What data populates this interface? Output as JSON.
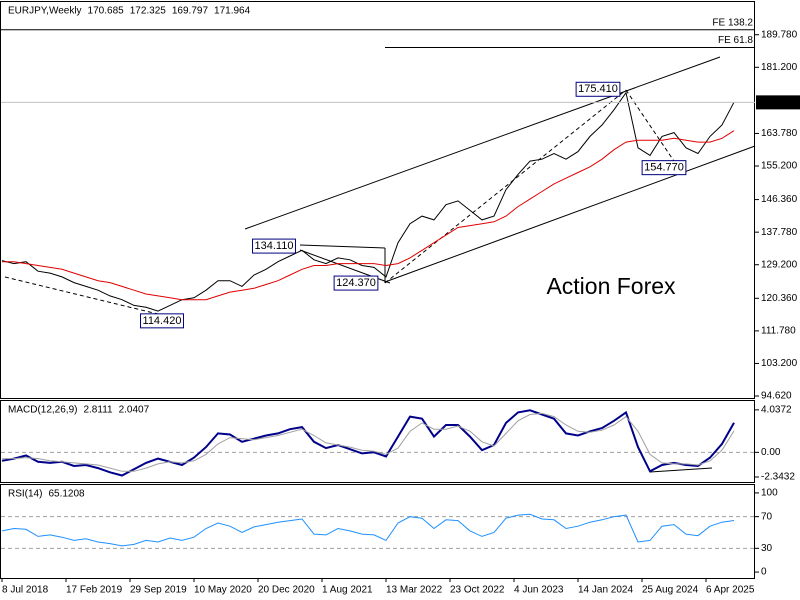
{
  "chart_data": [
    {
      "type": "line",
      "title": "EURJPY,Weekly",
      "ohlc": [
        170.685,
        172.325,
        169.797,
        171.964
      ],
      "x": [
        0,
        6,
        12,
        18,
        24,
        30,
        36,
        42,
        48,
        54,
        60,
        66,
        72,
        78,
        84,
        90,
        96,
        102,
        108,
        114,
        120,
        126,
        132,
        138,
        144,
        150,
        156,
        162,
        168,
        174,
        180,
        186,
        192,
        198,
        204,
        210,
        216,
        222,
        228,
        234,
        240,
        246,
        252,
        258,
        264,
        270,
        276,
        282,
        288,
        294,
        300,
        306,
        312,
        318,
        324,
        330,
        336,
        342,
        348,
        354,
        360,
        366
      ],
      "xlim": [
        -1,
        376.5
      ],
      "ylim": [
        94.1,
        198.4
      ],
      "yticks": [
        {
          "value": 189.78,
          "label": "189.780"
        },
        {
          "value": 181.2,
          "label": "181.200"
        },
        {
          "value": 163.78,
          "label": "163.780"
        },
        {
          "value": 155.2,
          "label": "155.200"
        },
        {
          "value": 146.36,
          "label": "146.360"
        },
        {
          "value": 137.78,
          "label": "137.780"
        },
        {
          "value": 129.2,
          "label": "129.200"
        },
        {
          "value": 120.36,
          "label": "120.360"
        },
        {
          "value": 111.78,
          "label": "111.780"
        },
        {
          "value": 103.2,
          "label": "103.200"
        },
        {
          "value": 94.62,
          "label": "94.620"
        }
      ],
      "last_price": {
        "value": 171.964,
        "label": "171.964"
      },
      "series": [
        {
          "color": "#000000",
          "values": [
            130.3,
            129.5,
            130,
            127.5,
            127,
            126,
            124.5,
            123.5,
            122.5,
            121,
            120,
            118.5,
            118,
            117,
            118.5,
            120,
            120.5,
            122.5,
            125,
            125,
            123.5,
            126.5,
            128,
            130,
            131.5,
            133,
            130.5,
            129.5,
            131,
            130.5,
            129,
            128.5,
            126,
            135,
            140,
            142,
            141,
            145,
            146,
            143.5,
            141,
            142,
            149,
            153,
            156.5,
            157,
            158.5,
            157,
            159,
            163,
            166,
            170,
            174.5,
            160,
            158,
            163,
            164,
            160,
            158.5,
            163,
            166,
            172
          ]
        },
        {
          "color": "#e00000",
          "values": [
            130,
            130,
            129.5,
            129,
            128.5,
            128,
            127,
            126,
            125,
            124.5,
            123.5,
            122.5,
            121.5,
            121,
            120.5,
            120,
            120,
            120,
            121,
            122,
            122.5,
            123,
            124,
            125,
            126.5,
            128,
            129,
            129,
            129.5,
            129.5,
            129.5,
            129.5,
            129,
            129.5,
            131,
            133,
            135,
            137,
            139,
            139.5,
            140,
            140.5,
            142,
            144.5,
            146.5,
            148.5,
            150.5,
            152,
            153.5,
            155,
            157,
            159.5,
            161.5,
            162,
            162,
            162,
            162.5,
            162,
            161.5,
            161.5,
            162.5,
            164.5
          ]
        }
      ],
      "annotations": [
        {
          "value": 175.41,
          "label": "175.410",
          "x": 312
        },
        {
          "value": 154.77,
          "label": "154.770",
          "x": 329
        },
        {
          "value": 134.11,
          "label": "134.110",
          "x": 149
        },
        {
          "value": 124.37,
          "label": "124.370",
          "x": 192
        },
        {
          "value": 114.42,
          "label": "114.420",
          "x": 80
        }
      ],
      "fe_levels": [
        {
          "label": "FE 138.2",
          "price": 191.1,
          "from": -1
        },
        {
          "label": "FE 61.8",
          "price": 186.4,
          "from": 191.5
        }
      ],
      "watermark": "Action Forex"
    },
    {
      "type": "line",
      "title": "MACD(12,26,9)",
      "ylim": [
        -2.82,
        4.88
      ],
      "yticks": [
        4.0372,
        {
          "value": 0,
          "label": "0.00"
        },
        -2.3432
      ],
      "levels": [
        0
      ],
      "series": [
        {
          "color": "#00008b",
          "values": [
            -0.8,
            -0.6,
            -0.3,
            -0.9,
            -1.0,
            -0.9,
            -1.3,
            -1.2,
            -1.5,
            -1.9,
            -2.2,
            -1.6,
            -1.0,
            -0.6,
            -0.9,
            -1.2,
            -0.5,
            0.5,
            1.8,
            1.7,
            1.0,
            1.3,
            1.6,
            1.8,
            2.2,
            2.4,
            1.0,
            0.4,
            0.7,
            0.3,
            -0.1,
            0.0,
            -0.4,
            1.5,
            3.4,
            3.2,
            1.5,
            2.6,
            2.6,
            1.5,
            0.2,
            0.7,
            2.8,
            3.8,
            4.0,
            3.6,
            3.2,
            1.8,
            1.6,
            2.0,
            2.3,
            3.0,
            3.8,
            0.5,
            -1.8,
            -1.2,
            -1.0,
            -1.2,
            -1.3,
            -0.5,
            0.8,
            2.8111
          ]
        },
        {
          "color": "#a0a0a0",
          "values": [
            -0.6,
            -0.6,
            -0.5,
            -0.6,
            -0.8,
            -0.9,
            -1.0,
            -1.1,
            -1.2,
            -1.5,
            -1.8,
            -1.8,
            -1.5,
            -1.1,
            -0.9,
            -1.0,
            -0.8,
            -0.2,
            0.8,
            1.4,
            1.3,
            1.2,
            1.4,
            1.6,
            1.9,
            2.2,
            1.6,
            0.9,
            0.7,
            0.5,
            0.2,
            0.1,
            -0.2,
            0.4,
            2.0,
            2.8,
            2.2,
            2.2,
            2.5,
            2.0,
            1.0,
            0.6,
            1.8,
            3.0,
            3.6,
            3.7,
            3.4,
            2.6,
            2.0,
            1.9,
            2.1,
            2.6,
            3.4,
            2.0,
            -0.2,
            -1.0,
            -1.1,
            -1.1,
            -1.2,
            -0.8,
            0.2,
            2.0407
          ]
        }
      ]
    },
    {
      "type": "line",
      "title": "RSI(14)",
      "ylim": [
        -7.5,
        110
      ],
      "yticks": [
        100,
        70,
        30,
        0
      ],
      "levels": [
        70,
        30
      ],
      "series": [
        {
          "color": "#1e90ff",
          "values": [
            52,
            55,
            54,
            45,
            47,
            44,
            40,
            42,
            38,
            36,
            33,
            35,
            40,
            38,
            43,
            40,
            44,
            55,
            62,
            58,
            50,
            57,
            60,
            63,
            65,
            67,
            48,
            47,
            55,
            52,
            48,
            47,
            40,
            62,
            70,
            68,
            55,
            66,
            65,
            52,
            45,
            50,
            68,
            72,
            73,
            67,
            66,
            55,
            58,
            63,
            66,
            70,
            72,
            38,
            40,
            58,
            60,
            48,
            46,
            58,
            63,
            65.1208
          ]
        }
      ],
      "xticks": [
        {
          "value": 0,
          "label": "8 Jul 2018"
        },
        {
          "value": 32,
          "label": "17 Feb 2019"
        },
        {
          "value": 64,
          "label": "29 Sep 2019"
        },
        {
          "value": 96,
          "label": "10 May 2020"
        },
        {
          "value": 128,
          "label": "20 Dec 2020"
        },
        {
          "value": 160,
          "label": "1 Aug 2021"
        },
        {
          "value": 192,
          "label": "13 Mar 2022"
        },
        {
          "value": 224,
          "label": "23 Oct 2022"
        },
        {
          "value": 256,
          "label": "4 Jun 2023"
        },
        {
          "value": 288,
          "label": "14 Jan 2024"
        },
        {
          "value": 320,
          "label": "25 Aug 2024"
        },
        {
          "value": 352,
          "label": "6 Apr 2025"
        }
      ]
    }
  ]
}
